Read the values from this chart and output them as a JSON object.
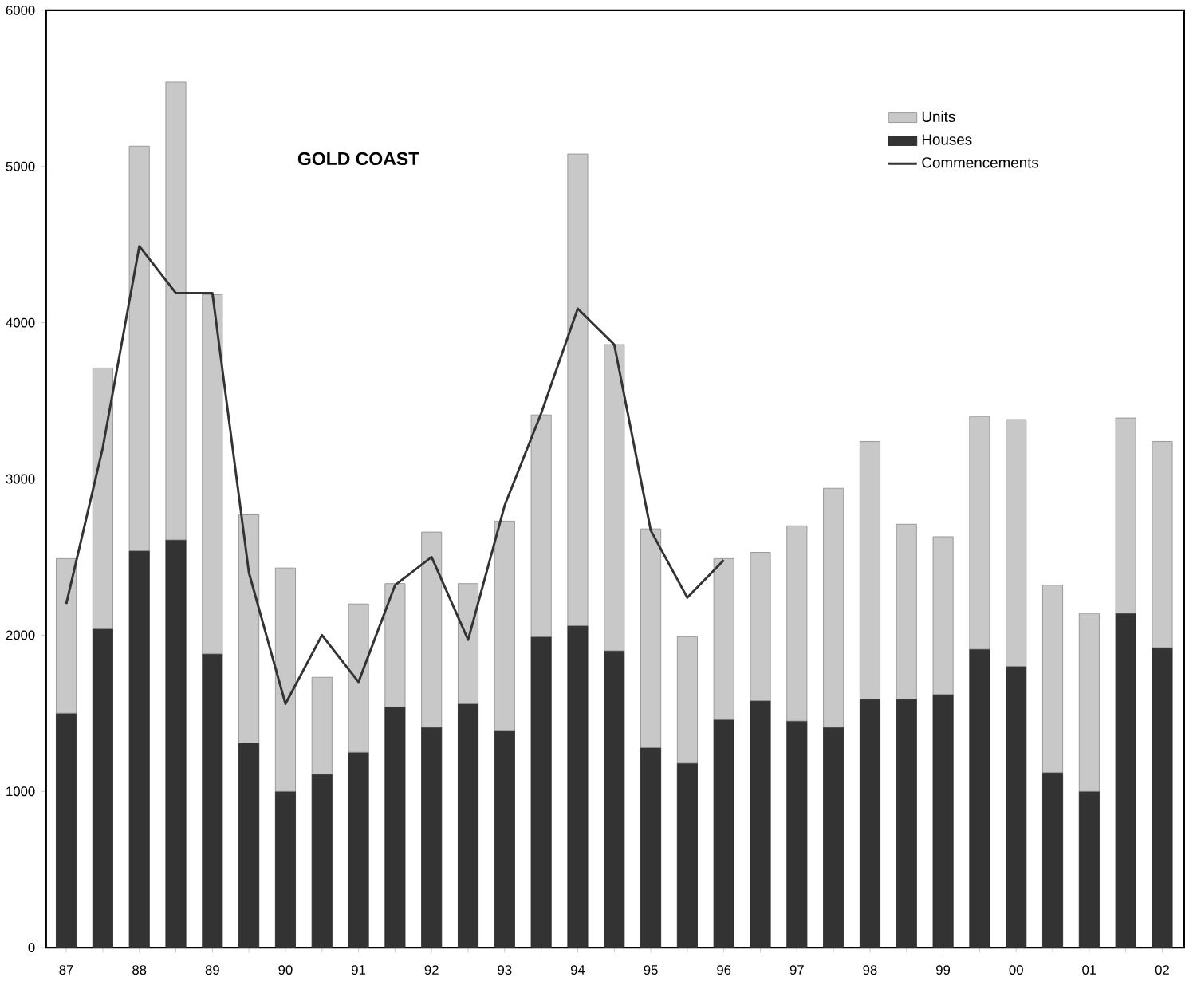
{
  "chart_data": {
    "type": "bar",
    "title": "GOLD COAST",
    "stacked": true,
    "categories": [
      "87",
      null,
      "88",
      null,
      "89",
      null,
      "90",
      null,
      "91",
      null,
      "92",
      null,
      "93",
      null,
      "94",
      null,
      "95",
      null,
      "96",
      null,
      "97",
      null,
      "98",
      null,
      "99",
      null,
      "00",
      null,
      "01",
      null,
      "02"
    ],
    "series": [
      {
        "name": "Houses",
        "color": "#333333",
        "values": [
          1500,
          2040,
          2540,
          2610,
          1880,
          1310,
          1000,
          1110,
          1250,
          1540,
          1410,
          1560,
          1390,
          1990,
          2060,
          1900,
          1280,
          1180,
          1460,
          1580,
          1450,
          1410,
          1590,
          1590,
          1620,
          1910,
          1800,
          1120,
          1000,
          2140,
          1920
        ]
      },
      {
        "name": "Units",
        "color": "#c8c8c8",
        "values": [
          990,
          1670,
          2590,
          2930,
          2300,
          1460,
          1430,
          620,
          950,
          790,
          1250,
          770,
          1340,
          1420,
          3020,
          1960,
          1400,
          810,
          1030,
          950,
          1250,
          1530,
          1650,
          1120,
          1010,
          1490,
          1580,
          1200,
          1140,
          1250,
          1320
        ]
      },
      {
        "name": "Commencements",
        "type": "line",
        "color": "#333333",
        "values": [
          2200,
          3200,
          4490,
          4190,
          4190,
          2400,
          1560,
          2000,
          1700,
          2320,
          2500,
          1970,
          2830,
          3420,
          4090,
          3860,
          2670,
          2240,
          2480,
          null,
          null,
          null,
          null,
          null,
          null,
          null,
          null,
          null,
          null,
          null,
          null
        ]
      }
    ],
    "ylim": [
      0,
      6000
    ],
    "yticks": [
      0,
      1000,
      2000,
      3000,
      4000,
      5000,
      6000
    ],
    "legend": "top right",
    "grid": false
  }
}
